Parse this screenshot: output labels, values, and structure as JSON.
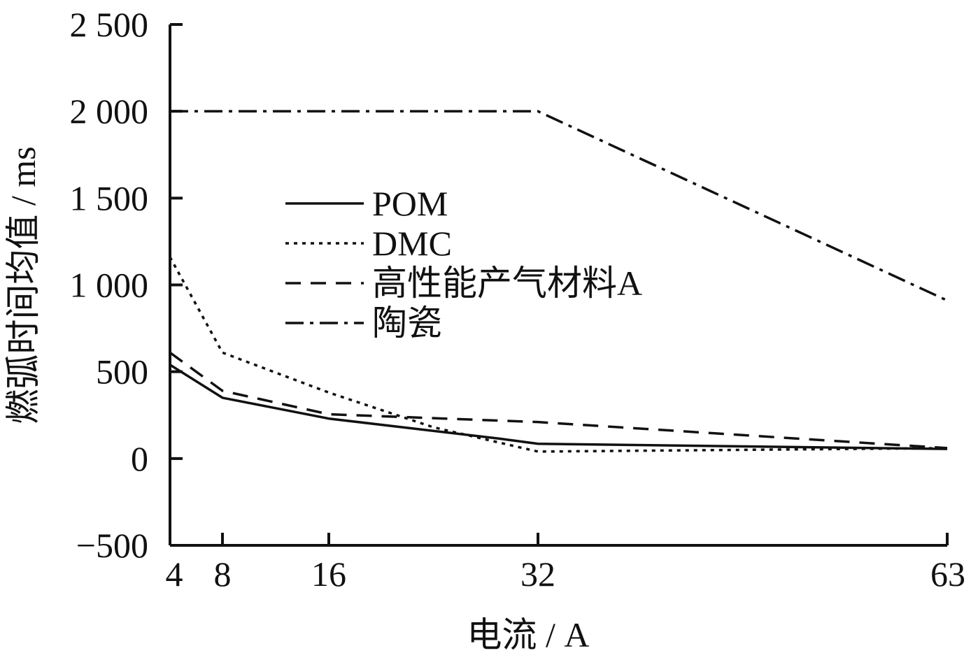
{
  "chart_data": {
    "type": "line",
    "xlabel": "电流 / A",
    "ylabel": "燃弧时间均值 / ms",
    "x": [
      4,
      8,
      16,
      32,
      63
    ],
    "xlim": [
      4,
      63
    ],
    "ylim": [
      -500,
      2500
    ],
    "x_ticks": [
      4,
      8,
      16,
      32,
      63
    ],
    "x_tick_labels": [
      "4",
      "8",
      "16",
      "32",
      "63"
    ],
    "y_ticks": [
      -500,
      0,
      500,
      1000,
      1500,
      2000,
      2500
    ],
    "y_tick_labels": [
      "−500",
      "0",
      "500",
      "1 000",
      "1 500",
      "2 000",
      "2 500"
    ],
    "grid": false,
    "legend_position": "center-left",
    "series": [
      {
        "name": "POM",
        "style": "solid",
        "color": "#111111",
        "points": [
          [
            4,
            540
          ],
          [
            8,
            350
          ],
          [
            16,
            230
          ],
          [
            29,
            115
          ],
          [
            32,
            85
          ],
          [
            63,
            55
          ]
        ]
      },
      {
        "name": "DMC",
        "style": "dotted",
        "color": "#111111",
        "points": [
          [
            4,
            1160
          ],
          [
            8,
            610
          ],
          [
            16,
            380
          ],
          [
            24,
            180
          ],
          [
            32,
            40
          ],
          [
            63,
            60
          ]
        ]
      },
      {
        "name": "高性能产气材料A",
        "style": "dashed",
        "color": "#111111",
        "points": [
          [
            4,
            610
          ],
          [
            8,
            390
          ],
          [
            16,
            255
          ],
          [
            32,
            210
          ],
          [
            63,
            60
          ]
        ]
      },
      {
        "name": "陶瓷",
        "style": "dashdot",
        "color": "#111111",
        "points": [
          [
            4,
            2000
          ],
          [
            32,
            2000
          ],
          [
            63,
            910
          ]
        ]
      }
    ]
  }
}
